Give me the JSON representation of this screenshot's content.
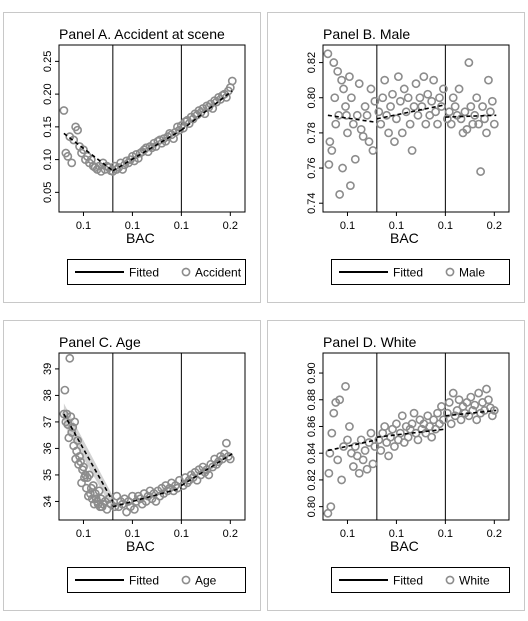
{
  "colors": {
    "marker": "#8c8c8c",
    "fit": "#000000",
    "ci": "#c8c8c8",
    "frame": "#c8c8c8",
    "bg": "#ffffff"
  },
  "chart_data": [
    {
      "type": "scatter",
      "title": "Panel A. Accident at scene",
      "xlabel": "BAC",
      "xticks": [
        "0.1",
        "0.1",
        "0.1",
        "0.2"
      ],
      "xtick_values": [
        0.05,
        0.1,
        0.15,
        0.2
      ],
      "xlim": [
        0.025,
        0.215
      ],
      "yticks": [
        "0.05",
        "0.10",
        "0.15",
        "0.20",
        "0.25"
      ],
      "ytick_values": [
        0.05,
        0.1,
        0.15,
        0.2,
        0.25
      ],
      "ylim": [
        0.02,
        0.275
      ],
      "cutoffs": [
        0.08,
        0.15
      ],
      "legend": [
        "Fitted",
        "Accident"
      ],
      "legend_position": "bottom",
      "points": {
        "x": [
          0.03,
          0.032,
          0.034,
          0.036,
          0.038,
          0.04,
          0.042,
          0.044,
          0.046,
          0.048,
          0.05,
          0.052,
          0.054,
          0.056,
          0.058,
          0.06,
          0.062,
          0.064,
          0.066,
          0.068,
          0.07,
          0.072,
          0.074,
          0.076,
          0.078,
          0.08,
          0.082,
          0.084,
          0.086,
          0.088,
          0.09,
          0.092,
          0.094,
          0.096,
          0.098,
          0.1,
          0.102,
          0.104,
          0.106,
          0.108,
          0.11,
          0.112,
          0.114,
          0.116,
          0.118,
          0.12,
          0.122,
          0.124,
          0.126,
          0.128,
          0.13,
          0.132,
          0.134,
          0.136,
          0.138,
          0.14,
          0.142,
          0.144,
          0.146,
          0.148,
          0.15,
          0.152,
          0.154,
          0.156,
          0.158,
          0.16,
          0.162,
          0.164,
          0.166,
          0.168,
          0.17,
          0.172,
          0.174,
          0.176,
          0.178,
          0.18,
          0.182,
          0.184,
          0.186,
          0.188,
          0.19,
          0.192,
          0.194,
          0.196,
          0.198,
          0.2,
          0.202
        ],
        "y": [
          0.175,
          0.11,
          0.105,
          0.135,
          0.095,
          0.13,
          0.15,
          0.145,
          0.12,
          0.11,
          0.115,
          0.1,
          0.105,
          0.095,
          0.1,
          0.09,
          0.088,
          0.085,
          0.09,
          0.082,
          0.095,
          0.085,
          0.09,
          0.088,
          0.083,
          0.082,
          0.09,
          0.085,
          0.088,
          0.095,
          0.085,
          0.092,
          0.098,
          0.095,
          0.1,
          0.105,
          0.098,
          0.108,
          0.102,
          0.11,
          0.112,
          0.115,
          0.118,
          0.112,
          0.12,
          0.118,
          0.125,
          0.12,
          0.128,
          0.13,
          0.125,
          0.132,
          0.128,
          0.135,
          0.14,
          0.138,
          0.132,
          0.142,
          0.15,
          0.145,
          0.152,
          0.148,
          0.158,
          0.16,
          0.155,
          0.165,
          0.162,
          0.17,
          0.168,
          0.175,
          0.172,
          0.178,
          0.17,
          0.182,
          0.18,
          0.185,
          0.178,
          0.19,
          0.188,
          0.195,
          0.192,
          0.198,
          0.2,
          0.195,
          0.205,
          0.21,
          0.22
        ]
      },
      "fits": [
        {
          "x": [
            0.03,
            0.08
          ],
          "y": [
            0.14,
            0.083
          ]
        },
        {
          "x": [
            0.08,
            0.15
          ],
          "y": [
            0.083,
            0.145
          ]
        },
        {
          "x": [
            0.15,
            0.202
          ],
          "y": [
            0.145,
            0.205
          ]
        }
      ]
    },
    {
      "type": "scatter",
      "title": "Panel B. Male",
      "xlabel": "BAC",
      "xticks": [
        "0.1",
        "0.1",
        "0.1",
        "0.2"
      ],
      "xtick_values": [
        0.05,
        0.1,
        0.15,
        0.2
      ],
      "xlim": [
        0.025,
        0.215
      ],
      "yticks": [
        "0.74",
        "0.76",
        "0.78",
        "0.80",
        "0.82"
      ],
      "ytick_values": [
        0.74,
        0.76,
        0.78,
        0.8,
        0.82
      ],
      "ylim": [
        0.735,
        0.83
      ],
      "cutoffs": [
        0.08,
        0.15
      ],
      "legend": [
        "Fitted",
        "Male"
      ],
      "legend_position": "bottom",
      "points": {
        "x": [
          0.03,
          0.031,
          0.032,
          0.034,
          0.036,
          0.037,
          0.038,
          0.04,
          0.041,
          0.042,
          0.044,
          0.045,
          0.046,
          0.048,
          0.049,
          0.05,
          0.052,
          0.053,
          0.054,
          0.056,
          0.058,
          0.06,
          0.062,
          0.064,
          0.066,
          0.068,
          0.07,
          0.072,
          0.074,
          0.076,
          0.078,
          0.082,
          0.084,
          0.086,
          0.088,
          0.09,
          0.092,
          0.094,
          0.096,
          0.098,
          0.1,
          0.102,
          0.104,
          0.106,
          0.108,
          0.11,
          0.112,
          0.114,
          0.116,
          0.118,
          0.12,
          0.122,
          0.124,
          0.126,
          0.128,
          0.13,
          0.132,
          0.134,
          0.136,
          0.138,
          0.14,
          0.142,
          0.144,
          0.146,
          0.148,
          0.152,
          0.154,
          0.156,
          0.158,
          0.16,
          0.162,
          0.164,
          0.166,
          0.168,
          0.17,
          0.172,
          0.174,
          0.176,
          0.178,
          0.18,
          0.182,
          0.184,
          0.186,
          0.188,
          0.19,
          0.192,
          0.194,
          0.196,
          0.198,
          0.2
        ],
        "y": [
          0.825,
          0.762,
          0.775,
          0.77,
          0.82,
          0.8,
          0.785,
          0.815,
          0.79,
          0.745,
          0.81,
          0.76,
          0.805,
          0.795,
          0.79,
          0.78,
          0.812,
          0.75,
          0.8,
          0.785,
          0.765,
          0.79,
          0.808,
          0.782,
          0.778,
          0.795,
          0.79,
          0.775,
          0.805,
          0.77,
          0.798,
          0.792,
          0.785,
          0.8,
          0.81,
          0.79,
          0.78,
          0.795,
          0.802,
          0.775,
          0.788,
          0.812,
          0.798,
          0.78,
          0.805,
          0.792,
          0.8,
          0.785,
          0.77,
          0.795,
          0.808,
          0.79,
          0.8,
          0.795,
          0.812,
          0.785,
          0.802,
          0.79,
          0.798,
          0.81,
          0.792,
          0.785,
          0.8,
          0.795,
          0.805,
          0.788,
          0.792,
          0.785,
          0.8,
          0.795,
          0.79,
          0.805,
          0.788,
          0.78,
          0.792,
          0.782,
          0.82,
          0.795,
          0.785,
          0.79,
          0.8,
          0.785,
          0.758,
          0.795,
          0.788,
          0.78,
          0.81,
          0.792,
          0.798,
          0.785
        ]
      },
      "fits": [
        {
          "x": [
            0.03,
            0.08
          ],
          "y": [
            0.79,
            0.786
          ]
        },
        {
          "x": [
            0.08,
            0.15
          ],
          "y": [
            0.788,
            0.796
          ]
        },
        {
          "x": [
            0.15,
            0.202
          ],
          "y": [
            0.789,
            0.79
          ]
        }
      ]
    },
    {
      "type": "scatter",
      "title": "Panel C. Age",
      "xlabel": "BAC",
      "xticks": [
        "0.1",
        "0.1",
        "0.1",
        "0.2"
      ],
      "xtick_values": [
        0.05,
        0.1,
        0.15,
        0.2
      ],
      "xlim": [
        0.025,
        0.215
      ],
      "yticks": [
        "34",
        "35",
        "36",
        "37",
        "38",
        "39"
      ],
      "ytick_values": [
        34,
        35,
        36,
        37,
        38,
        39
      ],
      "ylim": [
        33.3,
        39.6
      ],
      "cutoffs": [
        0.08,
        0.15
      ],
      "legend": [
        "Fitted",
        "Age"
      ],
      "legend_position": "bottom",
      "points": {
        "x": [
          0.03,
          0.031,
          0.032,
          0.033,
          0.034,
          0.035,
          0.036,
          0.037,
          0.038,
          0.039,
          0.04,
          0.041,
          0.042,
          0.043,
          0.044,
          0.045,
          0.046,
          0.047,
          0.048,
          0.049,
          0.05,
          0.051,
          0.052,
          0.053,
          0.054,
          0.055,
          0.056,
          0.057,
          0.058,
          0.059,
          0.06,
          0.061,
          0.062,
          0.063,
          0.064,
          0.065,
          0.066,
          0.067,
          0.068,
          0.069,
          0.07,
          0.072,
          0.074,
          0.076,
          0.078,
          0.082,
          0.084,
          0.086,
          0.088,
          0.09,
          0.092,
          0.094,
          0.096,
          0.098,
          0.1,
          0.102,
          0.104,
          0.106,
          0.108,
          0.11,
          0.112,
          0.114,
          0.116,
          0.118,
          0.12,
          0.122,
          0.124,
          0.126,
          0.128,
          0.13,
          0.132,
          0.134,
          0.136,
          0.138,
          0.14,
          0.142,
          0.144,
          0.146,
          0.148,
          0.152,
          0.154,
          0.156,
          0.158,
          0.16,
          0.162,
          0.164,
          0.166,
          0.168,
          0.17,
          0.172,
          0.174,
          0.176,
          0.178,
          0.18,
          0.182,
          0.184,
          0.186,
          0.188,
          0.19,
          0.192,
          0.194,
          0.196,
          0.198,
          0.2
        ],
        "y": [
          37.3,
          38.2,
          37.0,
          37.3,
          36.9,
          36.4,
          39.4,
          37.2,
          36.6,
          36.8,
          36.1,
          37.0,
          35.6,
          35.9,
          36.3,
          35.4,
          35.7,
          35.5,
          34.7,
          35.2,
          35.3,
          34.9,
          35.0,
          34.5,
          34.9,
          34.2,
          35.0,
          34.3,
          34.5,
          34.1,
          34.6,
          33.9,
          34.3,
          34.1,
          34.0,
          33.9,
          34.4,
          33.8,
          34.1,
          33.8,
          33.9,
          34.0,
          33.7,
          34.1,
          33.9,
          33.8,
          34.2,
          33.8,
          34.0,
          33.9,
          34.1,
          33.6,
          34.0,
          33.8,
          34.2,
          33.7,
          34.0,
          34.2,
          34.1,
          33.9,
          34.3,
          34.0,
          34.2,
          34.4,
          34.1,
          34.3,
          34.0,
          34.4,
          34.2,
          34.5,
          34.3,
          34.6,
          34.4,
          34.5,
          34.7,
          34.4,
          34.6,
          34.5,
          34.8,
          34.6,
          34.9,
          34.7,
          34.8,
          35.0,
          34.9,
          35.1,
          34.8,
          35.2,
          35.0,
          35.3,
          35.1,
          35.2,
          35.0,
          35.4,
          35.3,
          35.6,
          35.4,
          35.5,
          35.7,
          35.6,
          35.8,
          36.2,
          35.7,
          35.6
        ]
      },
      "fits": [
        {
          "x": [
            0.03,
            0.08
          ],
          "y": [
            37.3,
            34.0
          ]
        },
        {
          "x": [
            0.08,
            0.15
          ],
          "y": [
            33.8,
            34.5
          ]
        },
        {
          "x": [
            0.15,
            0.202
          ],
          "y": [
            34.6,
            35.8
          ]
        }
      ],
      "ci_band": {
        "x": [
          0.03,
          0.08
        ],
        "upper": [
          37.7,
          34.2
        ],
        "lower": [
          36.9,
          33.7
        ]
      }
    },
    {
      "type": "scatter",
      "title": "Panel D. White",
      "xlabel": "BAC",
      "xticks": [
        "0.1",
        "0.1",
        "0.1",
        "0.2"
      ],
      "xtick_values": [
        0.05,
        0.1,
        0.15,
        0.2
      ],
      "xlim": [
        0.025,
        0.215
      ],
      "yticks": [
        "0.80",
        "0.82",
        "0.84",
        "0.86",
        "0.88",
        "0.90"
      ],
      "ytick_values": [
        0.8,
        0.82,
        0.84,
        0.86,
        0.88,
        0.9
      ],
      "ylim": [
        0.79,
        0.915
      ],
      "cutoffs": [
        0.08,
        0.15
      ],
      "legend": [
        "Fitted",
        "White"
      ],
      "legend_position": "bottom",
      "points": {
        "x": [
          0.03,
          0.031,
          0.032,
          0.033,
          0.034,
          0.036,
          0.038,
          0.04,
          0.042,
          0.044,
          0.046,
          0.048,
          0.05,
          0.052,
          0.054,
          0.056,
          0.058,
          0.06,
          0.062,
          0.064,
          0.066,
          0.068,
          0.07,
          0.072,
          0.074,
          0.076,
          0.078,
          0.082,
          0.084,
          0.086,
          0.088,
          0.09,
          0.092,
          0.094,
          0.096,
          0.098,
          0.1,
          0.102,
          0.104,
          0.106,
          0.108,
          0.11,
          0.112,
          0.114,
          0.116,
          0.118,
          0.12,
          0.122,
          0.124,
          0.126,
          0.128,
          0.13,
          0.132,
          0.134,
          0.136,
          0.138,
          0.14,
          0.142,
          0.144,
          0.146,
          0.148,
          0.152,
          0.154,
          0.156,
          0.158,
          0.16,
          0.162,
          0.164,
          0.166,
          0.168,
          0.17,
          0.172,
          0.174,
          0.176,
          0.178,
          0.18,
          0.182,
          0.184,
          0.186,
          0.188,
          0.19,
          0.192,
          0.194,
          0.196,
          0.198,
          0.2
        ],
        "y": [
          0.795,
          0.825,
          0.84,
          0.8,
          0.855,
          0.87,
          0.878,
          0.835,
          0.88,
          0.82,
          0.845,
          0.89,
          0.85,
          0.86,
          0.84,
          0.83,
          0.845,
          0.838,
          0.825,
          0.85,
          0.835,
          0.842,
          0.828,
          0.848,
          0.855,
          0.832,
          0.845,
          0.85,
          0.842,
          0.855,
          0.86,
          0.848,
          0.838,
          0.852,
          0.858,
          0.845,
          0.862,
          0.85,
          0.855,
          0.868,
          0.848,
          0.86,
          0.852,
          0.858,
          0.862,
          0.87,
          0.855,
          0.85,
          0.865,
          0.858,
          0.862,
          0.855,
          0.868,
          0.86,
          0.852,
          0.865,
          0.858,
          0.87,
          0.862,
          0.875,
          0.865,
          0.87,
          0.878,
          0.862,
          0.885,
          0.868,
          0.872,
          0.88,
          0.865,
          0.875,
          0.87,
          0.878,
          0.868,
          0.882,
          0.872,
          0.876,
          0.865,
          0.885,
          0.87,
          0.878,
          0.872,
          0.888,
          0.88,
          0.874,
          0.868,
          0.872
        ]
      },
      "fits": [
        {
          "x": [
            0.03,
            0.08
          ],
          "y": [
            0.842,
            0.85
          ]
        },
        {
          "x": [
            0.08,
            0.15
          ],
          "y": [
            0.852,
            0.858
          ]
        },
        {
          "x": [
            0.15,
            0.202
          ],
          "y": [
            0.868,
            0.872
          ]
        }
      ]
    }
  ]
}
